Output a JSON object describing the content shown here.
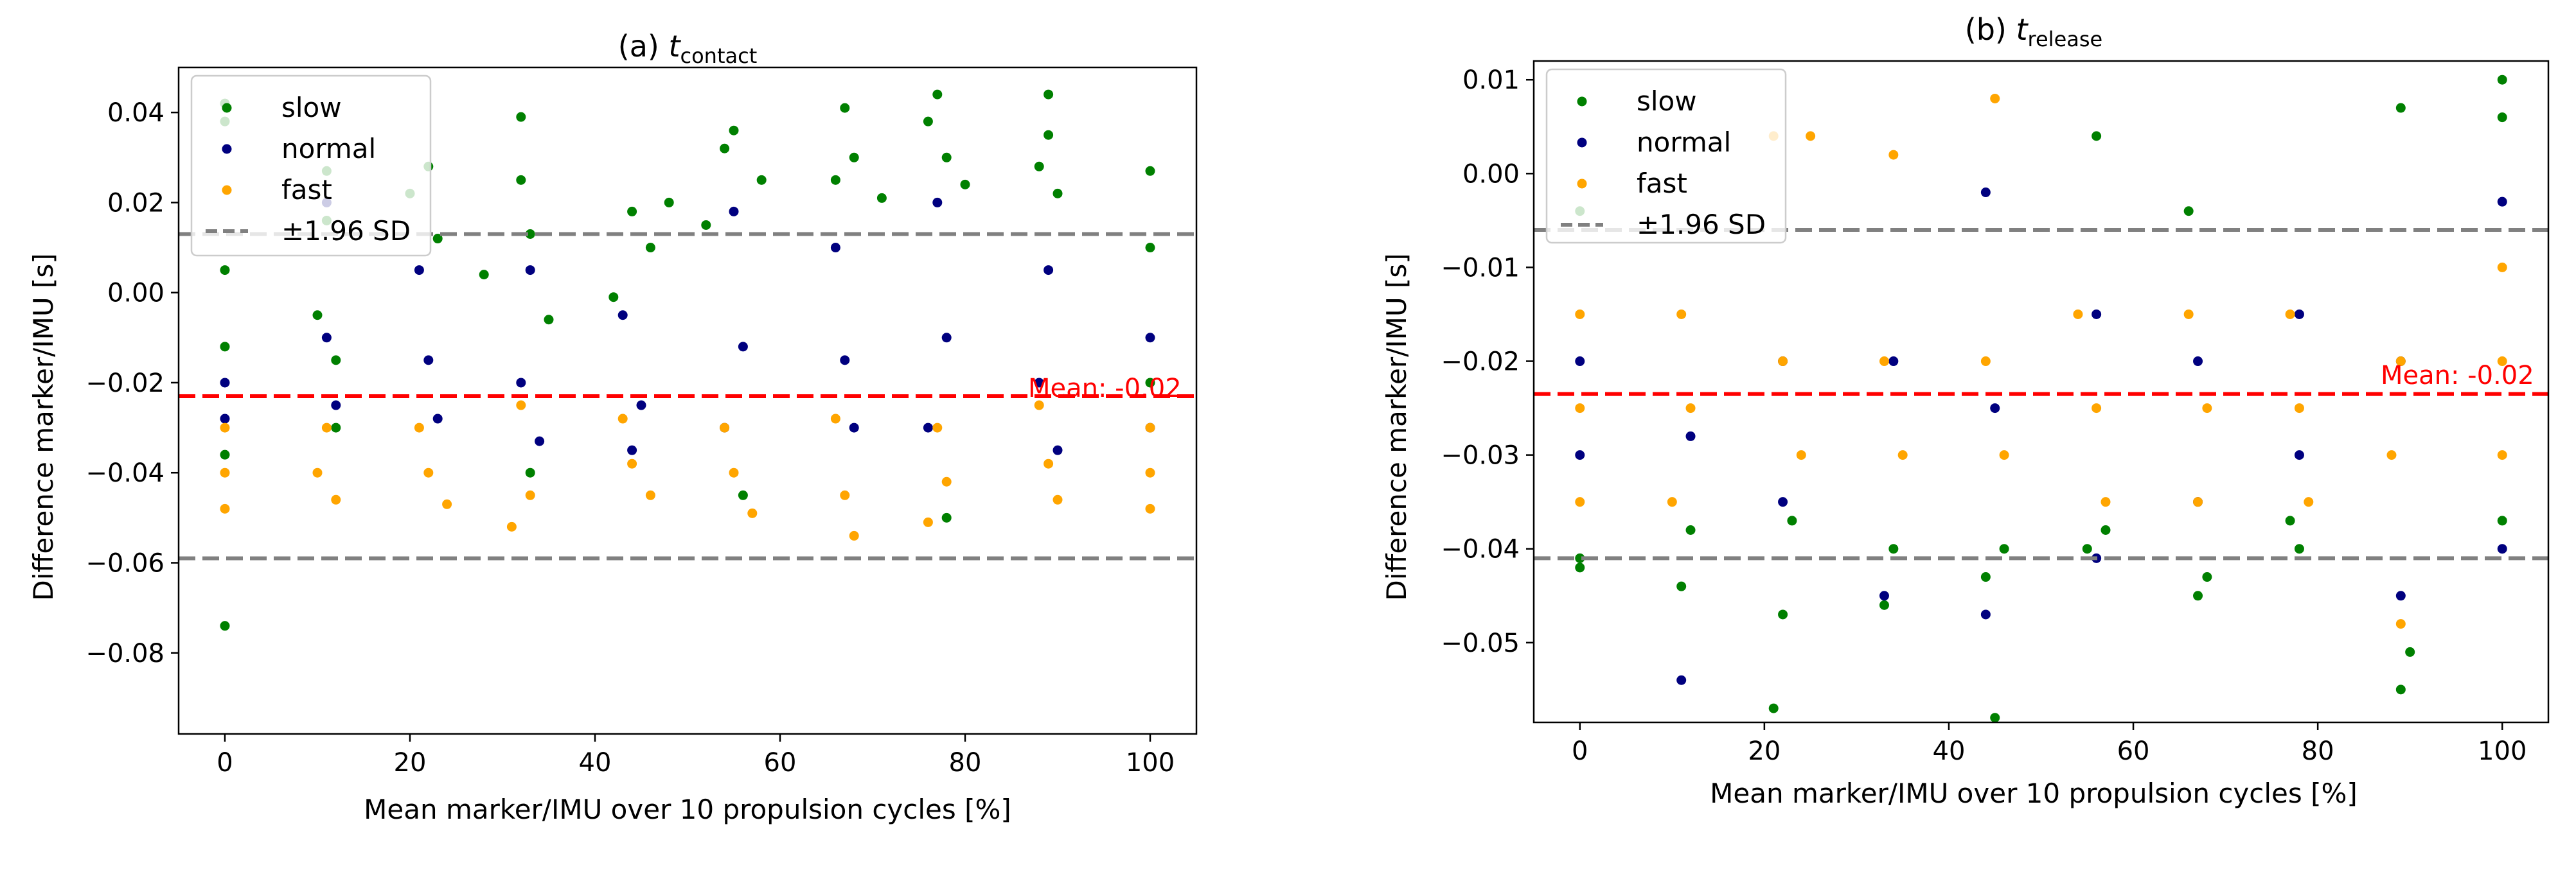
{
  "chart_data": [
    {
      "type": "scatter",
      "title_prefix": "(a) ",
      "title_symbol": "t",
      "title_subscript": "contact",
      "xlabel": "Mean marker/IMU over 10 propulsion cycles [%]",
      "ylabel": "Difference marker/IMU [s]",
      "xlim": [
        -5,
        105
      ],
      "ylim": [
        -0.098,
        0.05
      ],
      "xticks": [
        0,
        20,
        40,
        60,
        80,
        100
      ],
      "xtick_labels": [
        "0",
        "20",
        "40",
        "60",
        "80",
        "100"
      ],
      "yticks": [
        0.04,
        0.02,
        0.0,
        -0.02,
        -0.04,
        -0.06,
        -0.08
      ],
      "ytick_labels": [
        "0.04",
        "0.02",
        "0.00",
        "−0.02",
        "−0.04",
        "−0.06",
        "−0.08"
      ],
      "mean": -0.023,
      "upper_loa": 0.013,
      "lower_loa": -0.059,
      "mean_label": "Mean: -0.02",
      "legend": {
        "position": "upper-left",
        "entries": [
          {
            "label": "slow",
            "color": "#008000"
          },
          {
            "label": "normal",
            "color": "#00007f"
          },
          {
            "label": "fast",
            "color": "#ffa500"
          },
          {
            "label": "±1.96 SD",
            "color": "#808080",
            "style": "dashed"
          }
        ]
      },
      "series": [
        {
          "name": "slow",
          "color": "#008000",
          "points": [
            [
              0,
              0.042
            ],
            [
              0,
              0.038
            ],
            [
              0,
              0.005
            ],
            [
              0,
              -0.012
            ],
            [
              0,
              -0.074
            ],
            [
              0,
              -0.036
            ],
            [
              11,
              0.027
            ],
            [
              11,
              0.016
            ],
            [
              10,
              -0.005
            ],
            [
              12,
              -0.015
            ],
            [
              22,
              0.028
            ],
            [
              20,
              0.022
            ],
            [
              23,
              0.012
            ],
            [
              28,
              0.004
            ],
            [
              32,
              0.039
            ],
            [
              32,
              0.025
            ],
            [
              33,
              0.013
            ],
            [
              35,
              -0.006
            ],
            [
              44,
              0.018
            ],
            [
              46,
              0.01
            ],
            [
              42,
              -0.001
            ],
            [
              48,
              0.02
            ],
            [
              55,
              0.036
            ],
            [
              54,
              0.032
            ],
            [
              58,
              0.025
            ],
            [
              52,
              0.015
            ],
            [
              67,
              0.041
            ],
            [
              68,
              0.03
            ],
            [
              66,
              0.025
            ],
            [
              71,
              0.021
            ],
            [
              77,
              0.044
            ],
            [
              76,
              0.038
            ],
            [
              78,
              0.03
            ],
            [
              80,
              0.024
            ],
            [
              89,
              0.044
            ],
            [
              89,
              0.035
            ],
            [
              88,
              0.028
            ],
            [
              90,
              0.022
            ],
            [
              100,
              0.027
            ],
            [
              100,
              0.01
            ],
            [
              100,
              -0.02
            ],
            [
              12,
              -0.03
            ],
            [
              33,
              -0.04
            ],
            [
              56,
              -0.045
            ],
            [
              78,
              -0.05
            ]
          ]
        },
        {
          "name": "normal",
          "color": "#00007f",
          "points": [
            [
              0,
              -0.02
            ],
            [
              0,
              -0.028
            ],
            [
              11,
              0.02
            ],
            [
              11,
              -0.01
            ],
            [
              12,
              -0.025
            ],
            [
              21,
              0.005
            ],
            [
              22,
              -0.015
            ],
            [
              23,
              -0.028
            ],
            [
              33,
              0.005
            ],
            [
              32,
              -0.02
            ],
            [
              34,
              -0.033
            ],
            [
              43,
              -0.005
            ],
            [
              45,
              -0.025
            ],
            [
              44,
              -0.035
            ],
            [
              55,
              0.018
            ],
            [
              56,
              -0.012
            ],
            [
              54,
              -0.03
            ],
            [
              66,
              0.01
            ],
            [
              67,
              -0.015
            ],
            [
              68,
              -0.03
            ],
            [
              77,
              0.02
            ],
            [
              78,
              -0.01
            ],
            [
              76,
              -0.03
            ],
            [
              89,
              0.005
            ],
            [
              88,
              -0.02
            ],
            [
              90,
              -0.035
            ],
            [
              100,
              -0.01
            ],
            [
              100,
              -0.03
            ]
          ]
        },
        {
          "name": "fast",
          "color": "#ffa500",
          "points": [
            [
              0,
              -0.03
            ],
            [
              0,
              -0.04
            ],
            [
              0,
              -0.048
            ],
            [
              11,
              -0.03
            ],
            [
              10,
              -0.04
            ],
            [
              12,
              -0.046
            ],
            [
              21,
              -0.03
            ],
            [
              22,
              -0.04
            ],
            [
              24,
              -0.047
            ],
            [
              32,
              -0.025
            ],
            [
              33,
              -0.045
            ],
            [
              31,
              -0.052
            ],
            [
              43,
              -0.028
            ],
            [
              44,
              -0.038
            ],
            [
              46,
              -0.045
            ],
            [
              54,
              -0.03
            ],
            [
              55,
              -0.04
            ],
            [
              57,
              -0.049
            ],
            [
              66,
              -0.028
            ],
            [
              67,
              -0.045
            ],
            [
              68,
              -0.054
            ],
            [
              77,
              -0.03
            ],
            [
              78,
              -0.042
            ],
            [
              76,
              -0.051
            ],
            [
              88,
              -0.025
            ],
            [
              89,
              -0.038
            ],
            [
              90,
              -0.046
            ],
            [
              100,
              -0.03
            ],
            [
              100,
              -0.04
            ],
            [
              100,
              -0.048
            ]
          ]
        }
      ]
    },
    {
      "type": "scatter",
      "title_prefix": "(b) ",
      "title_symbol": "t",
      "title_subscript": "release",
      "xlabel": "Mean marker/IMU over 10 propulsion cycles [%]",
      "ylabel": "Difference marker/IMU [s]",
      "xlim": [
        -5,
        105
      ],
      "ylim": [
        -0.0585,
        0.012
      ],
      "xticks": [
        0,
        20,
        40,
        60,
        80,
        100
      ],
      "xtick_labels": [
        "0",
        "20",
        "40",
        "60",
        "80",
        "100"
      ],
      "yticks": [
        0.01,
        0.0,
        -0.01,
        -0.02,
        -0.03,
        -0.04,
        -0.05
      ],
      "ytick_labels": [
        "0.01",
        "0.00",
        "−0.01",
        "−0.02",
        "−0.03",
        "−0.04",
        "−0.05"
      ],
      "mean": -0.0235,
      "upper_loa": -0.006,
      "lower_loa": -0.041,
      "mean_label": "Mean: -0.02",
      "legend": {
        "position": "upper-left",
        "entries": [
          {
            "label": "slow",
            "color": "#008000"
          },
          {
            "label": "normal",
            "color": "#00007f"
          },
          {
            "label": "fast",
            "color": "#ffa500"
          },
          {
            "label": "±1.96 SD",
            "color": "#808080",
            "style": "dashed"
          }
        ]
      },
      "series": [
        {
          "name": "slow",
          "color": "#008000",
          "points": [
            [
              0,
              -0.004
            ],
            [
              0,
              -0.041
            ],
            [
              0,
              -0.042
            ],
            [
              11,
              -0.044
            ],
            [
              12,
              -0.038
            ],
            [
              22,
              -0.047
            ],
            [
              21,
              -0.057
            ],
            [
              23,
              -0.037
            ],
            [
              33,
              -0.046
            ],
            [
              34,
              -0.04
            ],
            [
              44,
              -0.043
            ],
            [
              45,
              -0.058
            ],
            [
              46,
              -0.04
            ],
            [
              56,
              0.004
            ],
            [
              55,
              -0.04
            ],
            [
              57,
              -0.038
            ],
            [
              66,
              -0.004
            ],
            [
              67,
              -0.045
            ],
            [
              68,
              -0.043
            ],
            [
              78,
              -0.04
            ],
            [
              77,
              -0.037
            ],
            [
              89,
              0.007
            ],
            [
              89,
              -0.055
            ],
            [
              90,
              -0.051
            ],
            [
              100,
              0.01
            ],
            [
              100,
              0.006
            ],
            [
              100,
              -0.037
            ]
          ]
        },
        {
          "name": "normal",
          "color": "#00007f",
          "points": [
            [
              0,
              -0.02
            ],
            [
              0,
              -0.03
            ],
            [
              11,
              -0.054
            ],
            [
              12,
              -0.028
            ],
            [
              22,
              -0.02
            ],
            [
              22,
              -0.035
            ],
            [
              33,
              -0.045
            ],
            [
              34,
              -0.02
            ],
            [
              44,
              -0.002
            ],
            [
              44,
              -0.047
            ],
            [
              45,
              -0.025
            ],
            [
              56,
              -0.015
            ],
            [
              56,
              -0.041
            ],
            [
              67,
              -0.02
            ],
            [
              67,
              -0.035
            ],
            [
              78,
              -0.015
            ],
            [
              78,
              -0.03
            ],
            [
              89,
              -0.02
            ],
            [
              89,
              -0.045
            ],
            [
              100,
              -0.003
            ],
            [
              100,
              -0.04
            ]
          ]
        },
        {
          "name": "fast",
          "color": "#ffa500",
          "points": [
            [
              0,
              -0.015
            ],
            [
              0,
              -0.025
            ],
            [
              0,
              -0.035
            ],
            [
              11,
              -0.015
            ],
            [
              12,
              -0.025
            ],
            [
              10,
              -0.035
            ],
            [
              21,
              0.004
            ],
            [
              22,
              -0.02
            ],
            [
              25,
              0.004
            ],
            [
              24,
              -0.03
            ],
            [
              34,
              0.002
            ],
            [
              33,
              -0.02
            ],
            [
              35,
              -0.03
            ],
            [
              45,
              0.008
            ],
            [
              44,
              -0.02
            ],
            [
              46,
              -0.03
            ],
            [
              54,
              -0.015
            ],
            [
              56,
              -0.025
            ],
            [
              57,
              -0.035
            ],
            [
              66,
              -0.015
            ],
            [
              68,
              -0.025
            ],
            [
              67,
              -0.035
            ],
            [
              77,
              -0.015
            ],
            [
              78,
              -0.025
            ],
            [
              79,
              -0.035
            ],
            [
              89,
              -0.02
            ],
            [
              88,
              -0.03
            ],
            [
              89,
              -0.048
            ],
            [
              100,
              -0.01
            ],
            [
              100,
              -0.02
            ],
            [
              100,
              -0.03
            ]
          ]
        }
      ]
    }
  ]
}
